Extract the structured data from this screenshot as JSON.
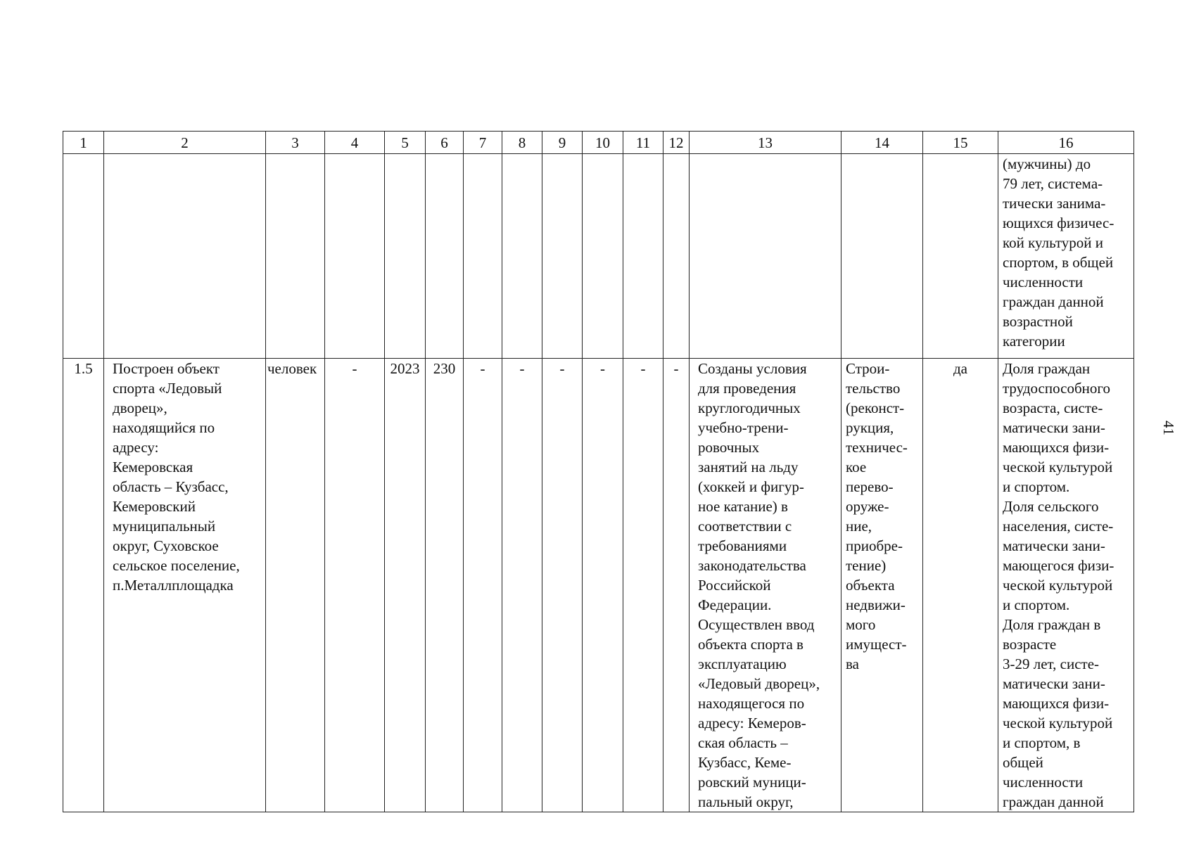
{
  "page_number": "41",
  "table": {
    "header": [
      "1",
      "2",
      "3",
      "4",
      "5",
      "6",
      "7",
      "8",
      "9",
      "10",
      "11",
      "12",
      "13",
      "14",
      "15",
      "16"
    ],
    "rows": [
      [
        "",
        "",
        "",
        "",
        "",
        "",
        "",
        "",
        "",
        "",
        "",
        "",
        "",
        "",
        "",
        "(мужчины) до\n79 лет, системa-\nтически занима-\nющихся физичес-\nкой культурой и\nспортом, в общей\nчисленности\nграждан данной\nвозрастной\nкатегории"
      ],
      [
        "1.5",
        "Построен объект\nспорта «Ледовый\nдворец»,\nнаходящийся по\nадресу:\nКемеровская\nобласть – Кузбасс,\nКемеровский\nмуниципальный\nокруг, Суховское\nсельское поселение,\nп.Металлплощадка",
        "человек",
        "-",
        "2023",
        "230",
        "-",
        "-",
        "-",
        "-",
        "-",
        "-",
        "Созданы условия\nдля проведения\nкруглогодичных\nучебно-трени-\nровочных\nзанятий на льду\n(хоккей и фигур-\nное катание) в\nсоответствии с\nтребованиями\nзаконодательства\nРоссийской\nФедерации.\nОсуществлен ввод\nобъекта спорта в\nэксплуатацию\n«Ледовый дворец»,\nнаходящегося по\nадресу: Кемеров-\nская область –\nКузбасс, Кеме-\nровский муници-\nпальный округ,",
        "Строи-\nтельство\n(реконст-\nрукция,\nтехничес-\nкое\nперево-\nоруже-\nние,\nприобре-\nтение)\nобъекта\nнедвижи-\nмого\nимущест-\nва",
        "да",
        "Доля граждан\nтрудоспособного\nвозраста, систе-\nматически зани-\nмающихся физи-\nческой культурой\nи спортом.\nДоля сельского\nнаселения, систе-\nматически зани-\nмающегося физи-\nческой культурой\nи спортом.\nДоля граждан в\nвозрасте\n3-29 лет, систе-\nматически зани-\nмающихся физи-\nческой культурой\nи спортом, в\nобщей\nчисленности\nграждан данной"
      ]
    ]
  }
}
